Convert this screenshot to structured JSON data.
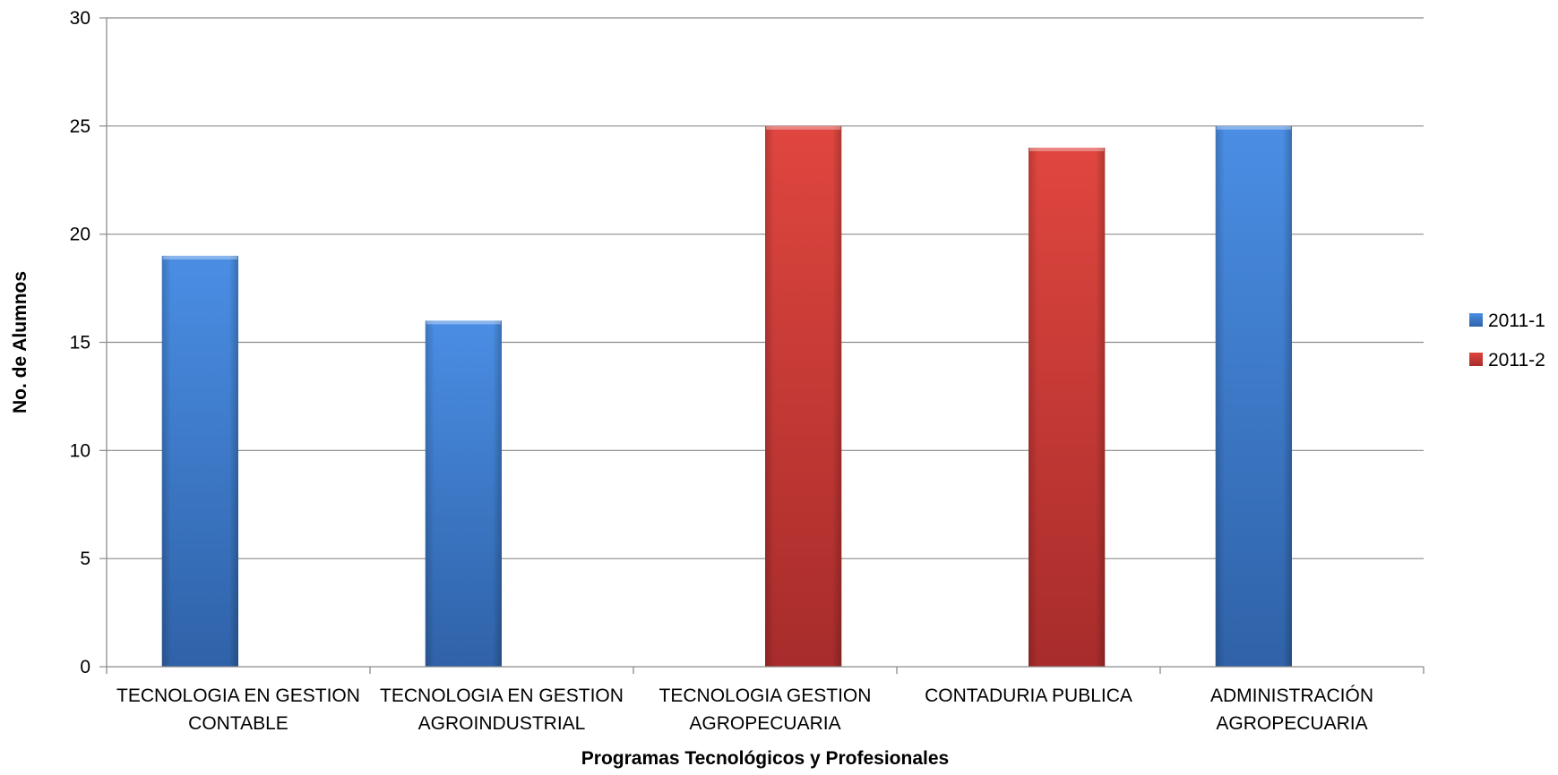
{
  "chart_data": {
    "type": "bar",
    "title": "",
    "xlabel": "Programas Tecnológicos y Profesionales",
    "ylabel": "No. de Alumnos",
    "ylim": [
      0,
      30
    ],
    "yticks": [
      0,
      5,
      10,
      15,
      20,
      25,
      30
    ],
    "grid": "horizontal",
    "legend_position": "right",
    "categories": [
      [
        "TECNOLOGIA EN GESTION",
        "CONTABLE"
      ],
      [
        "TECNOLOGIA EN GESTION",
        "AGROINDUSTRIAL"
      ],
      [
        "TECNOLOGIA GESTION",
        "AGROPECUARIA"
      ],
      [
        "CONTADURIA PUBLICA"
      ],
      [
        "ADMINISTRACIÓN",
        "AGROPECUARIA"
      ]
    ],
    "series": [
      {
        "name": "2011-1",
        "color": "#3f7fd4",
        "values": [
          19,
          16,
          null,
          null,
          25
        ]
      },
      {
        "name": "2011-2",
        "color": "#d0403c",
        "values": [
          null,
          null,
          25,
          24,
          null
        ]
      }
    ]
  }
}
